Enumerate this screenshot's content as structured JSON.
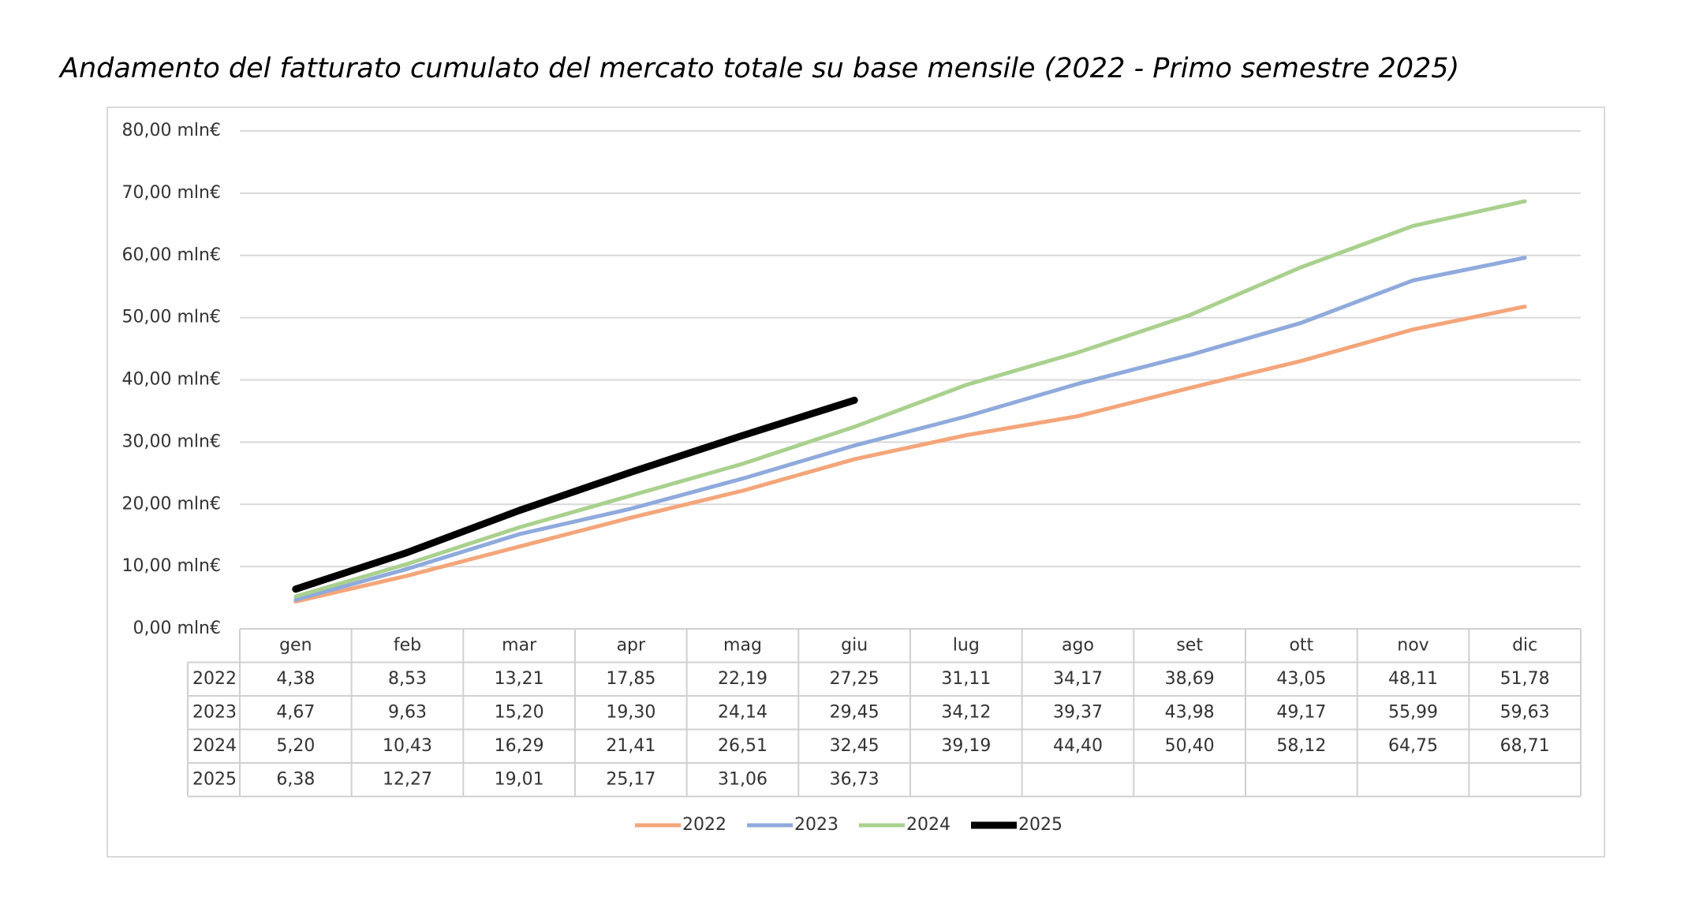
{
  "chart_data": {
    "type": "line",
    "title": "Andamento del fatturato cumulato del mercato totale su base mensile (2022 - Primo semestre 2025)",
    "categories": [
      "gen",
      "feb",
      "mar",
      "apr",
      "mag",
      "giu",
      "lug",
      "ago",
      "set",
      "ott",
      "nov",
      "dic"
    ],
    "series": [
      {
        "name": "2022",
        "color": "#f4a57a",
        "values": [
          4.38,
          8.53,
          13.21,
          17.85,
          22.19,
          27.25,
          31.11,
          34.17,
          38.69,
          43.05,
          48.11,
          51.78
        ],
        "value_labels": [
          "4,38",
          "8,53",
          "13,21",
          "17,85",
          "22,19",
          "27,25",
          "31,11",
          "34,17",
          "38,69",
          "43,05",
          "48,11",
          "51,78"
        ]
      },
      {
        "name": "2023",
        "color": "#8faadc",
        "values": [
          4.67,
          9.63,
          15.2,
          19.3,
          24.14,
          29.45,
          34.12,
          39.37,
          43.98,
          49.17,
          55.99,
          59.63
        ],
        "value_labels": [
          "4,67",
          "9,63",
          "15,20",
          "19,30",
          "24,14",
          "29,45",
          "34,12",
          "39,37",
          "43,98",
          "49,17",
          "55,99",
          "59,63"
        ]
      },
      {
        "name": "2024",
        "color": "#a9d18e",
        "values": [
          5.2,
          10.43,
          16.29,
          21.41,
          26.51,
          32.45,
          39.19,
          44.4,
          50.4,
          58.12,
          64.75,
          68.71
        ],
        "value_labels": [
          "5,20",
          "10,43",
          "16,29",
          "21,41",
          "26,51",
          "32,45",
          "39,19",
          "44,40",
          "50,40",
          "58,12",
          "64,75",
          "68,71"
        ]
      },
      {
        "name": "2025",
        "color": "#000000",
        "values": [
          6.38,
          12.27,
          19.01,
          25.17,
          31.06,
          36.73,
          null,
          null,
          null,
          null,
          null,
          null
        ],
        "value_labels": [
          "6,38",
          "12,27",
          "19,01",
          "25,17",
          "31,06",
          "36,73",
          null,
          null,
          null,
          null,
          null,
          null
        ]
      }
    ],
    "ylim": [
      0,
      80
    ],
    "yticks": [
      {
        "value": 0,
        "label": "0,00 mln€"
      },
      {
        "value": 10,
        "label": "10,00 mln€"
      },
      {
        "value": 20,
        "label": "20,00 mln€"
      },
      {
        "value": 30,
        "label": "30,00 mln€"
      },
      {
        "value": 40,
        "label": "40,00 mln€"
      },
      {
        "value": 50,
        "label": "50,00 mln€"
      },
      {
        "value": 60,
        "label": "60,00 mln€"
      },
      {
        "value": 70,
        "label": "70,00 mln€"
      },
      {
        "value": 80,
        "label": "80,00 mln€"
      }
    ],
    "grid": true,
    "legend": "bottom"
  }
}
